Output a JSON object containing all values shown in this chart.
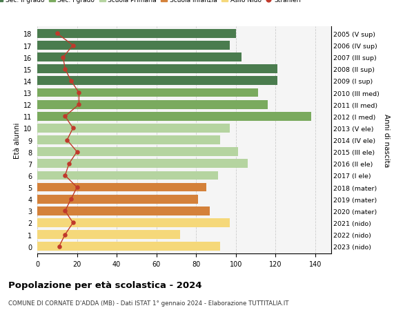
{
  "ages": [
    18,
    17,
    16,
    15,
    14,
    13,
    12,
    11,
    10,
    9,
    8,
    7,
    6,
    5,
    4,
    3,
    2,
    1,
    0
  ],
  "right_labels": [
    "2005 (V sup)",
    "2006 (IV sup)",
    "2007 (III sup)",
    "2008 (II sup)",
    "2009 (I sup)",
    "2010 (III med)",
    "2011 (II med)",
    "2012 (I med)",
    "2013 (V ele)",
    "2014 (IV ele)",
    "2015 (III ele)",
    "2016 (II ele)",
    "2017 (I ele)",
    "2018 (mater)",
    "2019 (mater)",
    "2020 (mater)",
    "2021 (nido)",
    "2022 (nido)",
    "2023 (nido)"
  ],
  "bar_values": [
    100,
    97,
    103,
    121,
    121,
    111,
    116,
    138,
    97,
    92,
    101,
    106,
    91,
    85,
    81,
    87,
    97,
    72,
    92
  ],
  "stranieri": [
    10,
    18,
    13,
    14,
    17,
    21,
    21,
    14,
    18,
    15,
    20,
    16,
    14,
    20,
    17,
    14,
    18,
    14,
    11
  ],
  "bar_colors": [
    "#4a7c4e",
    "#4a7c4e",
    "#4a7c4e",
    "#4a7c4e",
    "#4a7c4e",
    "#7aaa5e",
    "#7aaa5e",
    "#7aaa5e",
    "#b5d4a0",
    "#b5d4a0",
    "#b5d4a0",
    "#b5d4a0",
    "#b5d4a0",
    "#d4813a",
    "#d4813a",
    "#d4813a",
    "#f5d87a",
    "#f5d87a",
    "#f5d87a"
  ],
  "legend_labels": [
    "Sec. II grado",
    "Sec. I grado",
    "Scuola Primaria",
    "Scuola Infanzia",
    "Asilo Nido",
    "Stranieri"
  ],
  "legend_colors": [
    "#4a7c4e",
    "#7aaa5e",
    "#b5d4a0",
    "#d4813a",
    "#f5d87a",
    "#c0392b"
  ],
  "title": "Popolazione per età scolastica - 2024",
  "subtitle": "COMUNE DI CORNATE D'ADDA (MB) - Dati ISTAT 1° gennaio 2024 - Elaborazione TUTTITALIA.IT",
  "ylabel_left": "Età alunni",
  "ylabel_right": "Anni di nascita",
  "xlim": [
    0,
    148
  ],
  "xticks": [
    0,
    20,
    40,
    60,
    80,
    100,
    120,
    140
  ],
  "grid_color": "#cccccc",
  "bg_color": "#f5f5f5",
  "stranieri_color": "#c0392b",
  "bar_height": 0.75
}
